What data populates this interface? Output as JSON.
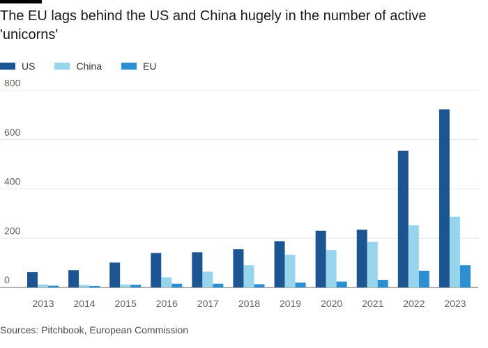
{
  "title": "The EU lags behind the US and China hugely in the number of active 'unicorns'",
  "source": "Sources: Pitchbook, European Commission",
  "legend": [
    {
      "name": "US",
      "color": "#1d5593"
    },
    {
      "name": "China",
      "color": "#96d5eb"
    },
    {
      "name": "EU",
      "color": "#2b8fd2"
    }
  ],
  "chart_data": {
    "type": "bar",
    "title": "The EU lags behind the US and China hugely in the number of active 'unicorns'",
    "xlabel": "",
    "ylabel": "",
    "ylim": [
      0,
      800
    ],
    "yticks": [
      0,
      200,
      400,
      600,
      800
    ],
    "grid": true,
    "legend_position": "top-left",
    "categories": [
      "2013",
      "2014",
      "2015",
      "2016",
      "2017",
      "2018",
      "2019",
      "2020",
      "2021",
      "2022",
      "2023"
    ],
    "series": [
      {
        "name": "US",
        "color": "#1d5593",
        "values": [
          62,
          70,
          101,
          140,
          143,
          155,
          188,
          230,
          235,
          555,
          723
        ]
      },
      {
        "name": "China",
        "color": "#96d5eb",
        "values": [
          12,
          10,
          12,
          41,
          64,
          90,
          133,
          152,
          185,
          253,
          287
        ]
      },
      {
        "name": "EU",
        "color": "#2b8fd2",
        "values": [
          7,
          6,
          11,
          15,
          15,
          13,
          20,
          24,
          31,
          68,
          90
        ]
      }
    ]
  }
}
